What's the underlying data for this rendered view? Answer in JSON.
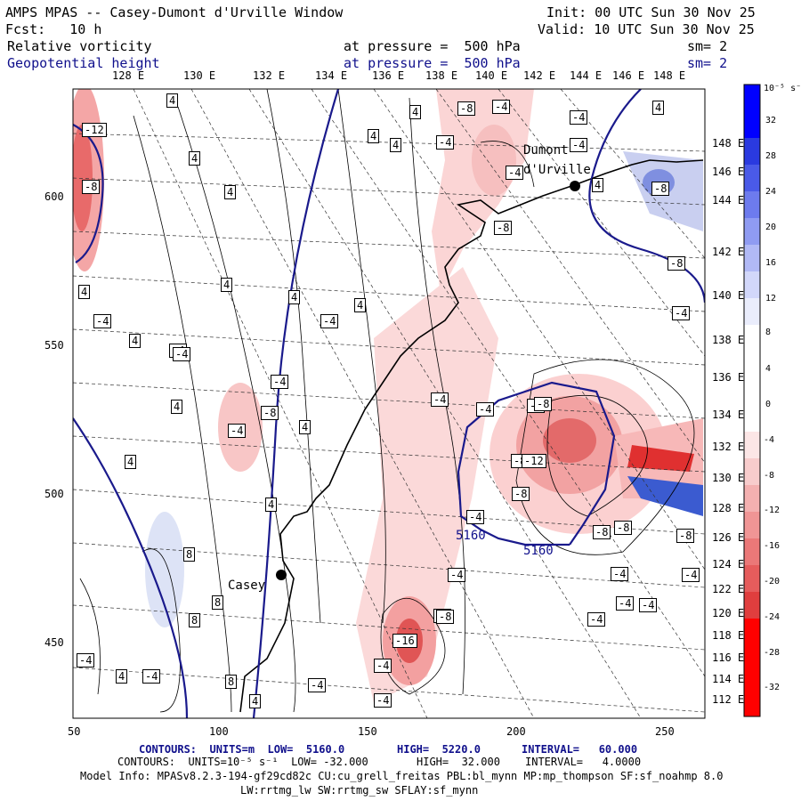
{
  "header": {
    "title": "AMPS MPAS -- Casey-Dumont d'Urville Window",
    "init": "Init: 00 UTC Sun 30 Nov 25",
    "fcst": "Fcst:   10 h",
    "valid": "Valid: 10 UTC Sun 30 Nov 25",
    "field1_name": "Relative vorticity",
    "field1_level": "at pressure =  500 hPa",
    "field1_sm": "sm= 2",
    "field2_name": "Geopotential height",
    "field2_level": "at pressure =  500 hPa",
    "field2_sm": "sm= 2"
  },
  "top_longitudes": [
    "128 E",
    "130 E",
    "132 E",
    "134 E",
    "136 E",
    "138 E",
    "140 E",
    "142 E",
    "144 E",
    "146 E",
    "148 E"
  ],
  "right_longitudes": [
    "148 E",
    "146 E",
    "144 E",
    "142 E",
    "140 E",
    "138 E",
    "136 E",
    "134 E",
    "132 E",
    "130 E",
    "128 E",
    "126 E",
    "124 E",
    "122 E",
    "120 E",
    "118 E",
    "116 E",
    "114 E",
    "112 E"
  ],
  "x_ticks": [
    "50",
    "100",
    "150",
    "200",
    "250"
  ],
  "y_ticks": [
    "600",
    "550",
    "500",
    "450"
  ],
  "colorbar": {
    "unit_label": "10⁻⁵ s⁻¹",
    "ticks": [
      "32",
      "28",
      "24",
      "20",
      "16",
      "12",
      "8",
      "4",
      "0",
      "-4",
      "-8",
      "-12",
      "-16",
      "-20",
      "-24",
      "-28",
      "-32"
    ],
    "positive_color": "#0000ff",
    "negative_color": "#ff0000"
  },
  "places": {
    "dumont": "Dumont d'Urville",
    "casey": "Casey"
  },
  "height_labels": [
    "5160",
    "5160"
  ],
  "vorticity_labels": [
    "4",
    "4",
    "4",
    "4",
    "4",
    "-4",
    "-4",
    "-8",
    "-4",
    "-4",
    "-8",
    "-4",
    "4",
    "4",
    "4",
    "4",
    "-4",
    "-12",
    "-8",
    "4",
    "4",
    "-4",
    "4",
    "-4",
    "4",
    "-4",
    "-8",
    "-4",
    "-4",
    "4",
    "4",
    "-4",
    "-8",
    "-8",
    "4",
    "8",
    "-8",
    "-8",
    "-4",
    "-4",
    "-8",
    "8",
    "-16",
    "-4",
    "4",
    "8",
    "-4",
    "-4",
    "4",
    "-4",
    "-4",
    "8",
    "-4",
    "-4",
    "-8",
    "-4",
    "-8",
    "-4",
    "-4",
    "-8",
    "-8",
    "4",
    "-4",
    "-4",
    "-8",
    "-8",
    "-12"
  ],
  "footer": {
    "line1_a": "CONTOURS:  UNITS=m  LOW=  5160.0",
    "line1_b": "HIGH=  5220.0",
    "line1_c": "INTERVAL=   60.000",
    "line2_a": "CONTOURS:  UNITS=10⁻⁵ s⁻¹  LOW= -32.000",
    "line2_b": "HIGH=  32.000",
    "line2_c": "INTERVAL=   4.0000",
    "model_info": "Model Info: MPASv8.2.3-194-gf29cd82c CU:cu_grell_freitas PBL:bl_mynn MP:mp_thompson SF:sf_noahmp 8.0",
    "model_info2": "LW:rrtmg_lw SW:rrtmg_sw SFLAY:sf_mynn"
  }
}
